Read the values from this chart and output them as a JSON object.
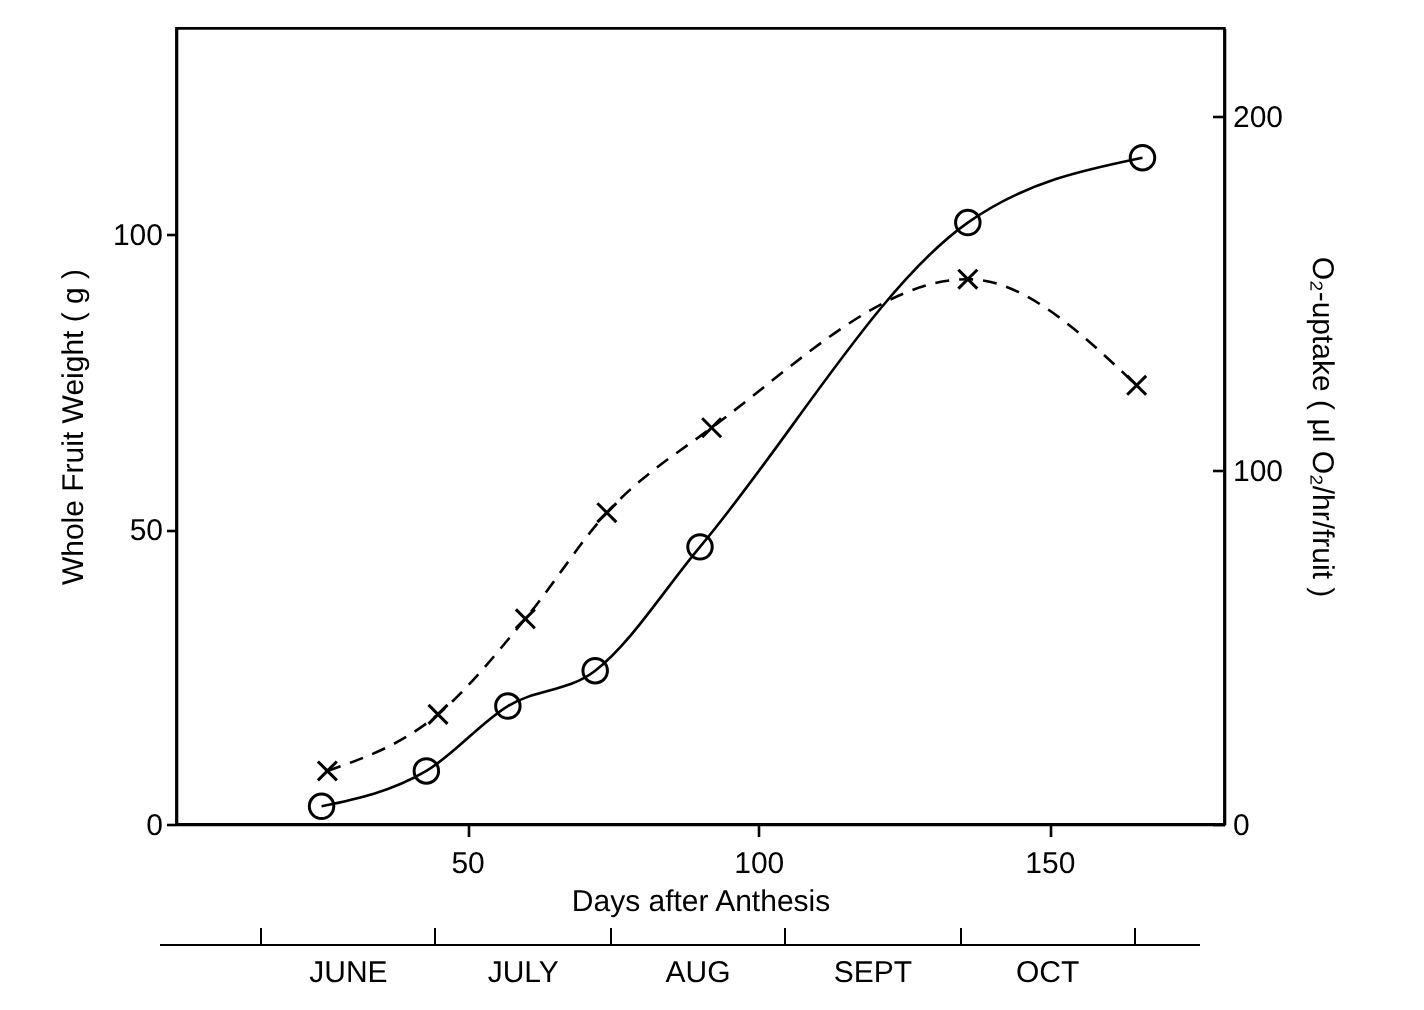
{
  "chart_data": {
    "type": "line",
    "xlabel": "Days after Anthesis",
    "ylabel": "Whole Fruit Weight ( g )",
    "y2label": "O₂-uptake ( μl O₂/hr/fruit )",
    "xlim": [
      0,
      180
    ],
    "xticks": [
      50,
      100,
      150
    ],
    "ylim": [
      0,
      135
    ],
    "yticks": [
      0,
      50,
      100
    ],
    "y2lim": [
      0,
      225
    ],
    "y2ticks": [
      0,
      100,
      200
    ],
    "annotations": [
      "JUNE",
      "JULY",
      "AUG",
      "SEPT",
      "OCT"
    ],
    "grid": false,
    "series": [
      {
        "color": "#000000",
        "marker": "circle",
        "line_style": "solid",
        "x": [
          25,
          43,
          57,
          72,
          90,
          136,
          166
        ],
        "values": [
          3,
          9,
          20,
          26,
          47,
          102,
          113
        ]
      },
      {
        "color": "#000000",
        "marker": "cross",
        "line_style": "dashed",
        "axis": "y2",
        "x": [
          26,
          45,
          60,
          74,
          92,
          136,
          165
        ],
        "values": [
          15,
          31,
          58,
          88,
          112,
          154,
          124
        ]
      }
    ]
  }
}
